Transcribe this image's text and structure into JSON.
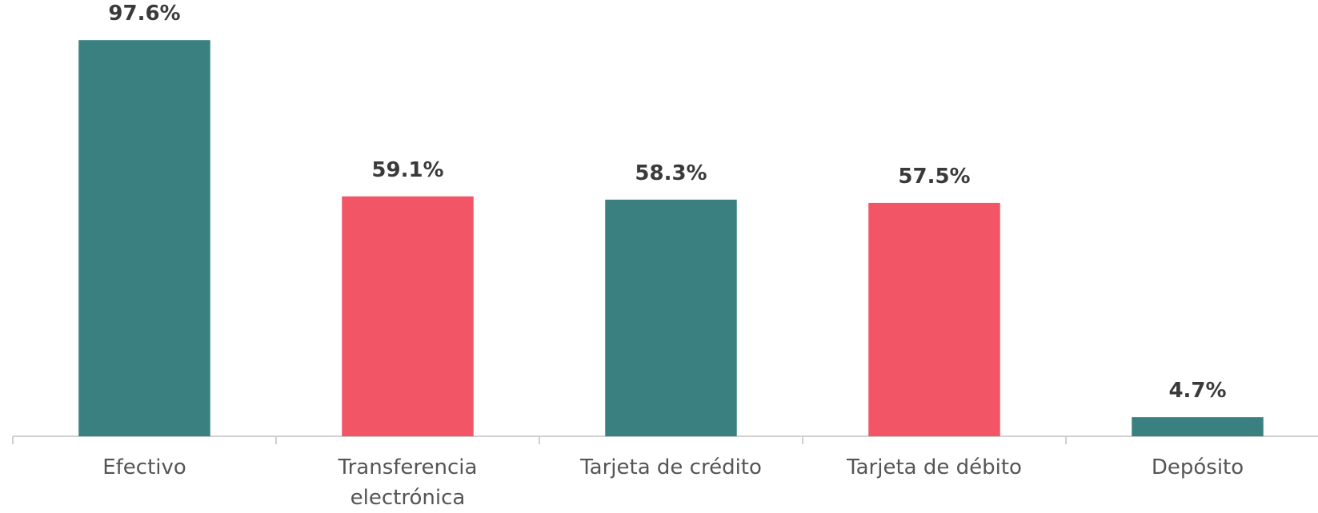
{
  "chart_data": {
    "type": "bar",
    "categories": [
      "Efectivo",
      "Transferencia electrónica",
      "Tarjeta de crédito",
      "Tarjeta de débito",
      "Depósito"
    ],
    "values": [
      97.6,
      59.1,
      58.3,
      57.5,
      4.7
    ],
    "value_labels": [
      "97.6%",
      "59.1%",
      "58.3%",
      "57.5%",
      "4.7%"
    ],
    "colors": [
      "#3b8080",
      "#f25565",
      "#3b8080",
      "#f25565",
      "#3b8080"
    ],
    "ylim": [
      0,
      100
    ]
  }
}
